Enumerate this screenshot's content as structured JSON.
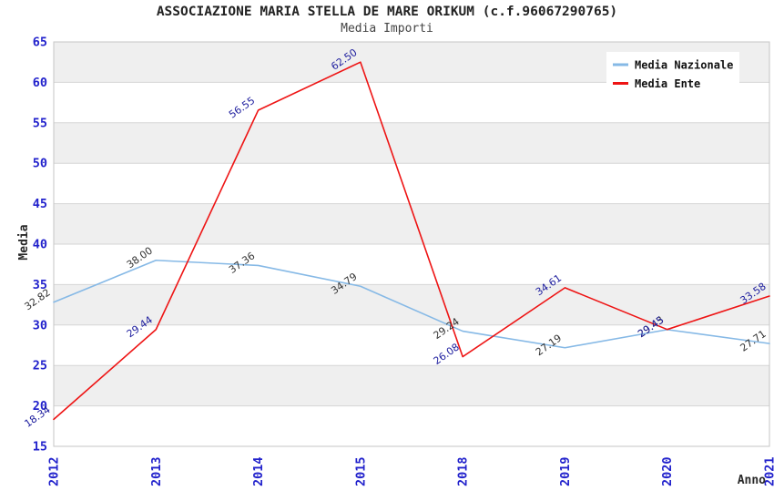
{
  "title": "ASSOCIAZIONE MARIA STELLA DE MARE ORIKUM (c.f.96067290765)",
  "subtitle": "Media Importi",
  "chart_data": {
    "type": "line",
    "title": "ASSOCIAZIONE MARIA STELLA DE MARE ORIKUM (c.f.96067290765)",
    "subtitle": "Media Importi",
    "xlabel": "Anno",
    "ylabel": "Media",
    "categories": [
      "2012",
      "2013",
      "2014",
      "2015",
      "2018",
      "2019",
      "2020",
      "2021"
    ],
    "series": [
      {
        "name": "Media Nazionale",
        "color": "#86b9e6",
        "label_color": "#333333",
        "values": [
          32.82,
          38.0,
          37.36,
          34.79,
          29.24,
          27.19,
          29.43,
          27.71
        ]
      },
      {
        "name": "Media Ente",
        "color": "#ee1414",
        "label_color": "#1d1d9e",
        "values": [
          18.34,
          29.44,
          56.55,
          62.5,
          26.08,
          34.61,
          29.45,
          33.58
        ]
      }
    ],
    "ylim": [
      15,
      65
    ],
    "yticks": [
      15,
      20,
      25,
      30,
      35,
      40,
      45,
      50,
      55,
      60,
      65
    ],
    "grid": true,
    "legend_position": "top-right",
    "plot_band_colors": [
      "#efefef",
      "#ffffff"
    ],
    "gridline_color": "#d6d6d6",
    "plot_border_color": "#c6c6c6",
    "tick_label_color": "#2222cc",
    "axis_title_color": "#2a2a2a",
    "legend_text_color": "#111111"
  }
}
